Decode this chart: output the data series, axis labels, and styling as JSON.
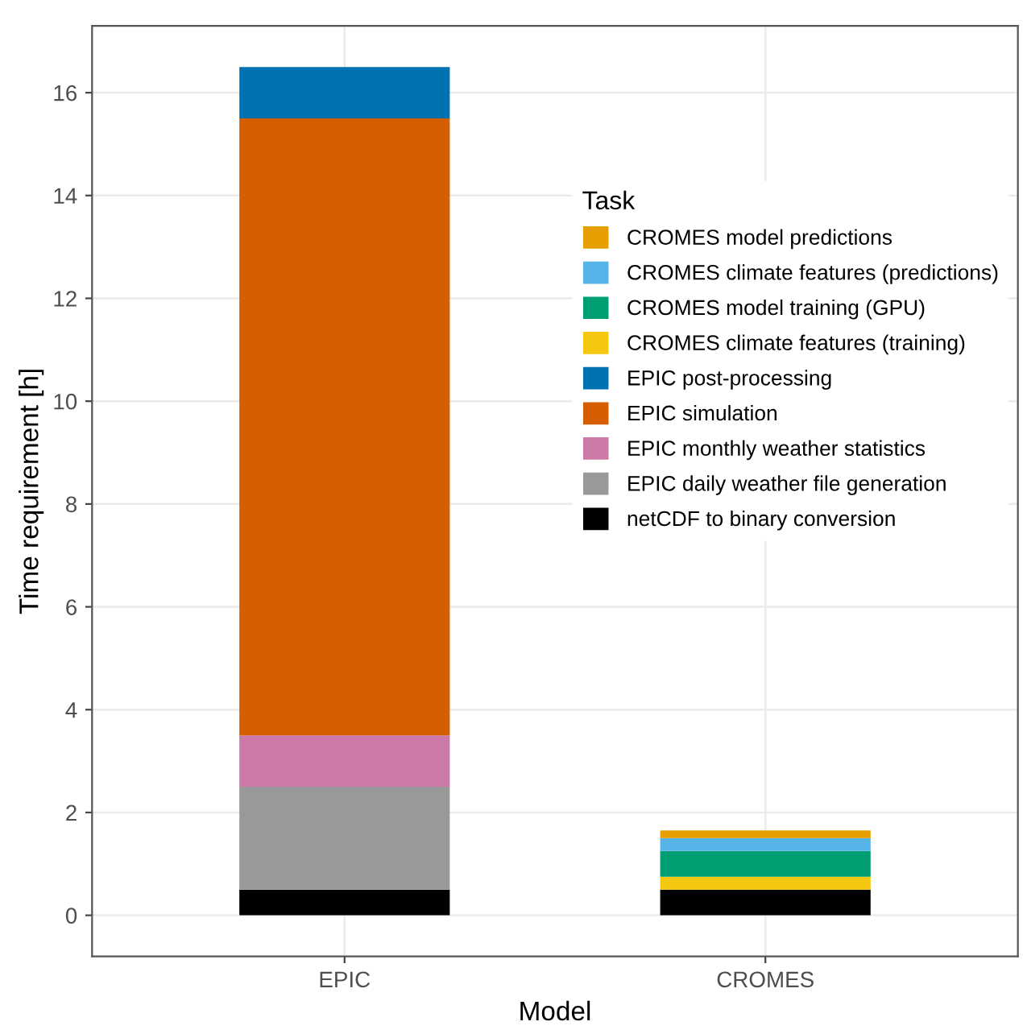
{
  "chart_data": {
    "type": "bar",
    "stacked": true,
    "xlabel": "Model",
    "ylabel": "Time requirement [h]",
    "legend_title": "Task",
    "categories": [
      "EPIC",
      "CROMES"
    ],
    "series": [
      {
        "name": "netCDF to binary conversion",
        "color": "#000000",
        "values": [
          0.5,
          0.5
        ]
      },
      {
        "name": "EPIC daily weather file generation",
        "color": "#999999",
        "values": [
          2,
          0
        ]
      },
      {
        "name": "EPIC monthly weather statistics",
        "color": "#cc79a7",
        "values": [
          1,
          0
        ]
      },
      {
        "name": "EPIC simulation",
        "color": "#d55e00",
        "values": [
          12,
          0
        ]
      },
      {
        "name": "EPIC post-processing",
        "color": "#0072b2",
        "values": [
          1,
          0
        ]
      },
      {
        "name": "CROMES climate features (training)",
        "color": "#f5c710",
        "values": [
          0,
          0.25
        ]
      },
      {
        "name": "CROMES model training (GPU)",
        "color": "#009e73",
        "values": [
          0,
          0.5
        ]
      },
      {
        "name": "CROMES climate features (predictions)",
        "color": "#56b4e9",
        "values": [
          0,
          0.25
        ]
      },
      {
        "name": "CROMES model predictions",
        "color": "#e69f00",
        "values": [
          0,
          0.15
        ]
      }
    ],
    "ylim": [
      -0.8,
      17.3
    ],
    "yticks": [
      0,
      2,
      4,
      6,
      8,
      10,
      12,
      14,
      16
    ],
    "grid": true,
    "legend": "right"
  }
}
